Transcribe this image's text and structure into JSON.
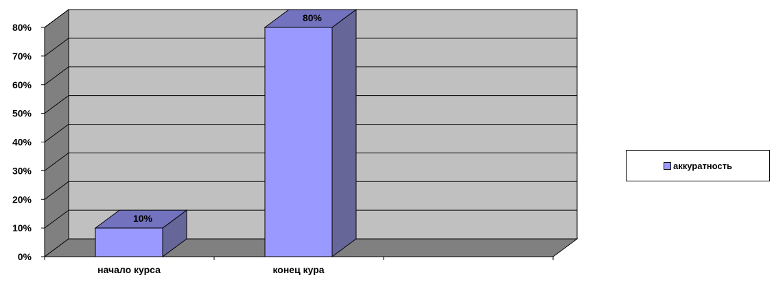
{
  "chart_data": {
    "type": "bar",
    "categories": [
      "начало курса",
      "конец кура",
      ""
    ],
    "series": [
      {
        "name": "аккуратность",
        "values": [
          10,
          80,
          null
        ],
        "color": "#9999ff"
      }
    ],
    "data_labels": [
      "10%",
      "80%"
    ],
    "y_ticks": [
      "0%",
      "10%",
      "20%",
      "30%",
      "40%",
      "50%",
      "60%",
      "70%",
      "80%"
    ],
    "ylim": [
      0,
      80
    ],
    "y_unit": "%",
    "grid": true,
    "legend_position": "right",
    "colors": {
      "wall": "#c0c0c0",
      "floor": "#808080",
      "bar_front": "#9999ff",
      "bar_top": "#7272bf",
      "bar_side": "#666699"
    }
  }
}
